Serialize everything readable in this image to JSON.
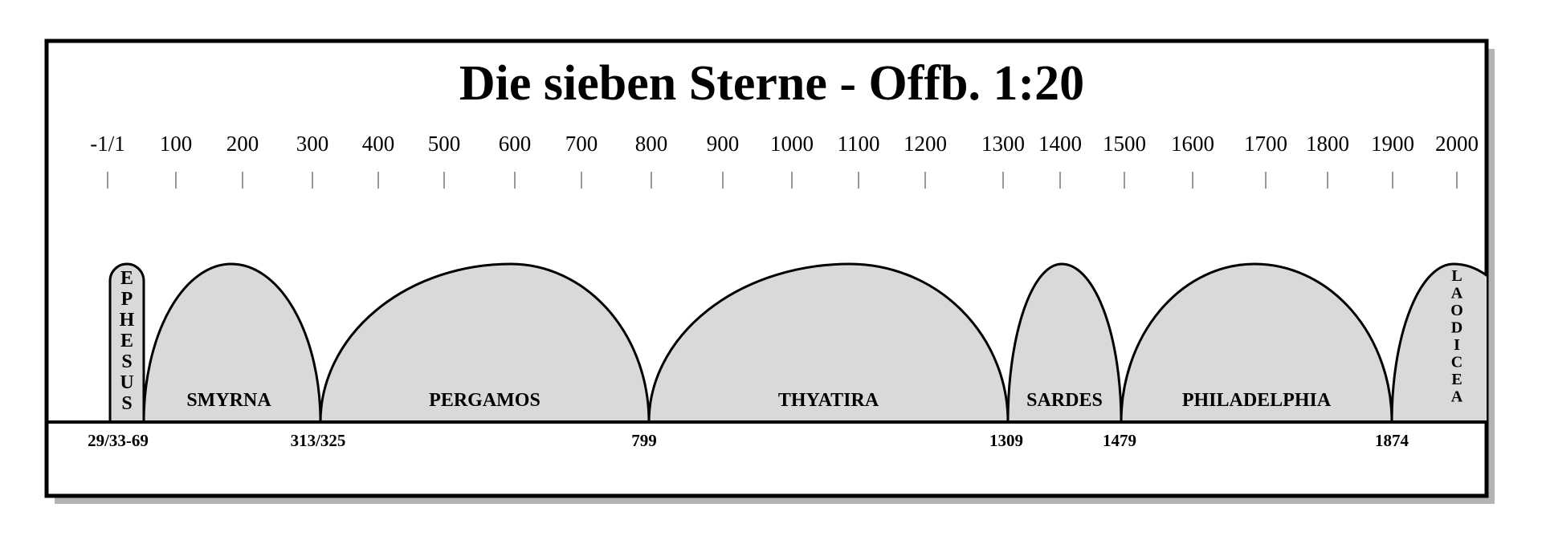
{
  "title": "Die sieben Sterne - Offb. 1:20",
  "colors": {
    "arch_fill": "#d9d9d9",
    "stroke": "#000000",
    "shadow": "#b3b3b3",
    "background": "#ffffff"
  },
  "year_ticks": [
    "-1/1",
    "100",
    "200",
    "300",
    "400",
    "500",
    "600",
    "700",
    "800",
    "900",
    "1000",
    "1100",
    "1200",
    "1300",
    "1400",
    "1500",
    "1600",
    "1700",
    "1800",
    "1900",
    "2000"
  ],
  "periods": [
    {
      "name": "EPHESUS",
      "orientation": "vertical"
    },
    {
      "name": "SMYRNA"
    },
    {
      "name": "PERGAMOS"
    },
    {
      "name": "THYATIRA"
    },
    {
      "name": "SARDES"
    },
    {
      "name": "PHILADELPHIA"
    },
    {
      "name": "LAODICEA",
      "orientation": "vertical"
    }
  ],
  "boundary_dates": [
    "29/33-69",
    "313/325",
    "799",
    "1309",
    "1479",
    "1874"
  ]
}
